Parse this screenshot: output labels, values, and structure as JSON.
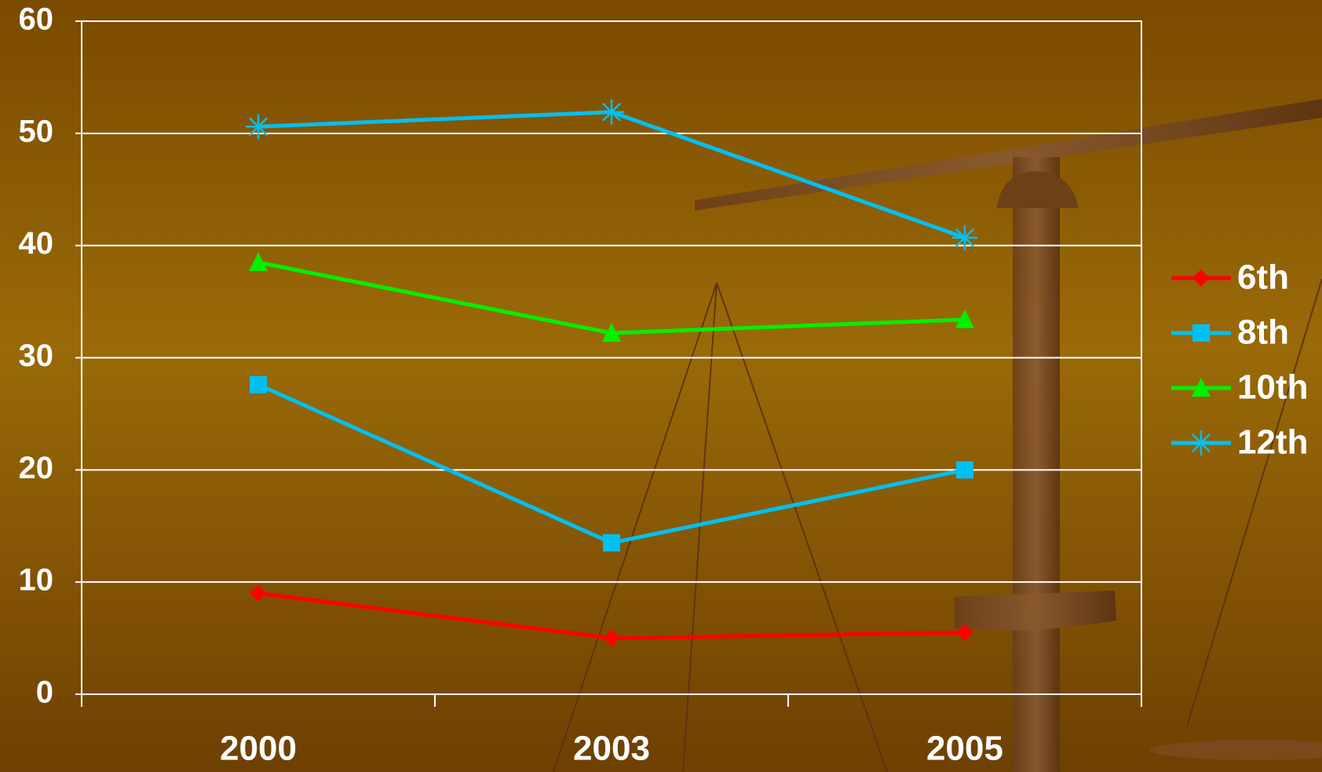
{
  "chart_data": {
    "type": "line",
    "categories": [
      "2000",
      "2003",
      "2005"
    ],
    "series": [
      {
        "name": "6th",
        "color": "#ff0000",
        "marker": "diamond",
        "values": [
          9,
          5,
          5.5
        ]
      },
      {
        "name": "8th",
        "color": "#00c0f0",
        "marker": "square",
        "values": [
          27.6,
          13.5,
          20
        ]
      },
      {
        "name": "10th",
        "color": "#00f000",
        "marker": "triangle",
        "values": [
          38.5,
          32.2,
          33.4
        ]
      },
      {
        "name": "12th",
        "color": "#00c0f0",
        "marker": "asterisk",
        "values": [
          50.6,
          51.9,
          40.7
        ]
      }
    ],
    "ylim": [
      0,
      60
    ],
    "yticks": [
      0,
      10,
      20,
      30,
      40,
      50,
      60
    ],
    "grid": true,
    "legend": "right"
  }
}
